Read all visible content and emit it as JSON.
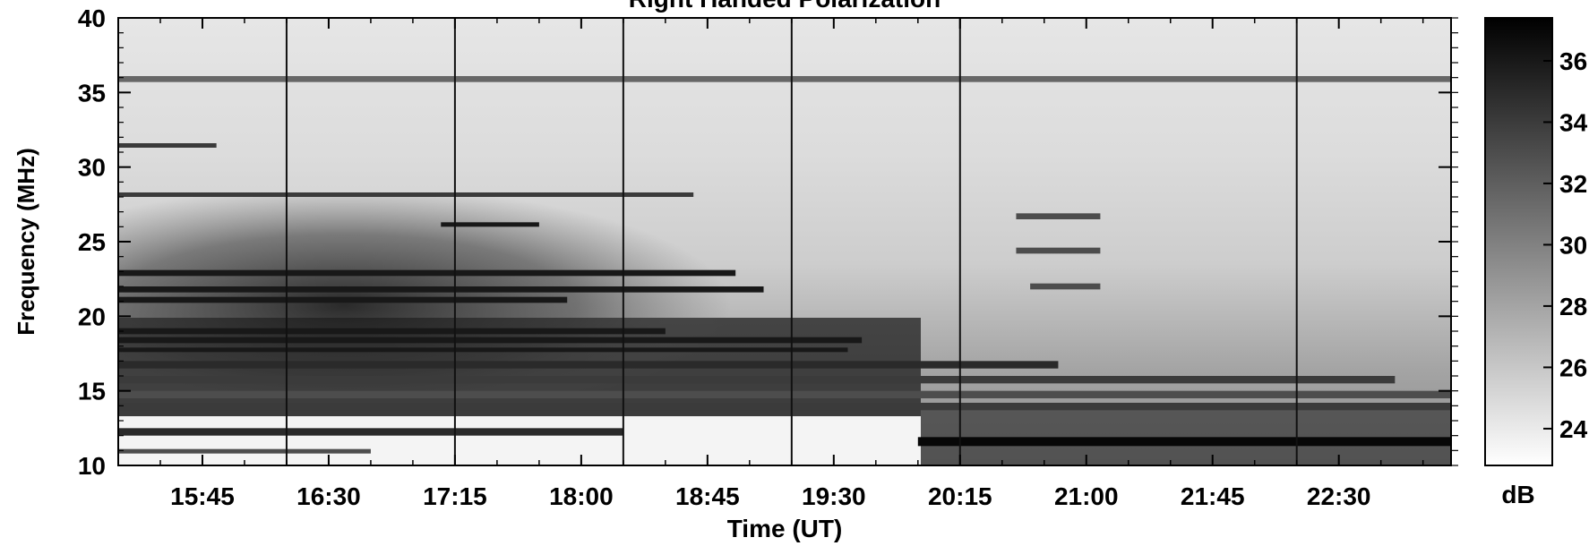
{
  "chart_data": {
    "type": "heatmap",
    "title": "Right Handed Polarization",
    "xlabel": "Time (UT)",
    "ylabel": "Frequency (MHz)",
    "x_ticks": [
      "15:45",
      "16:30",
      "17:15",
      "18:00",
      "18:45",
      "19:30",
      "20:15",
      "21:00",
      "21:45",
      "22:30"
    ],
    "y_ticks": [
      10,
      15,
      20,
      25,
      30,
      35,
      40
    ],
    "xlim": [
      "15:15",
      "23:10"
    ],
    "ylim": [
      10,
      40
    ],
    "colorbar": {
      "label": "dB",
      "ticks": [
        24,
        26,
        28,
        30,
        32,
        34,
        36
      ],
      "range": [
        22.8,
        37.4
      ],
      "colormap": "white-to-black"
    },
    "vertical_markers_ut": [
      "16:15",
      "17:15",
      "18:15",
      "19:15",
      "20:15",
      "22:15"
    ],
    "bands": [
      {
        "f_start": 35.7,
        "f_end": 36.1,
        "t_start": "15:15",
        "t_end": "23:10",
        "db": 31.5
      },
      {
        "f_start": 31.3,
        "f_end": 31.6,
        "t_start": "15:15",
        "t_end": "15:50",
        "db": 34
      },
      {
        "f_start": 28.0,
        "f_end": 28.3,
        "t_start": "15:15",
        "t_end": "18:40",
        "db": 34
      },
      {
        "f_start": 26.0,
        "f_end": 26.3,
        "t_start": "17:10",
        "t_end": "17:45",
        "db": 36
      },
      {
        "f_start": 22.7,
        "f_end": 23.1,
        "t_start": "15:15",
        "t_end": "18:55",
        "db": 36
      },
      {
        "f_start": 21.6,
        "f_end": 22.0,
        "t_start": "15:15",
        "t_end": "19:05",
        "db": 36
      },
      {
        "f_start": 20.9,
        "f_end": 21.3,
        "t_start": "15:15",
        "t_end": "17:55",
        "db": 36
      },
      {
        "f_start": 18.8,
        "f_end": 19.2,
        "t_start": "15:15",
        "t_end": "18:30",
        "db": 36
      },
      {
        "f_start": 18.2,
        "f_end": 18.6,
        "t_start": "15:15",
        "t_end": "19:40",
        "db": 36
      },
      {
        "f_start": 17.6,
        "f_end": 17.9,
        "t_start": "15:15",
        "t_end": "19:35",
        "db": 36
      },
      {
        "f_start": 16.5,
        "f_end": 17.0,
        "t_start": "15:15",
        "t_end": "20:50",
        "db": 35
      },
      {
        "f_start": 15.5,
        "f_end": 16.0,
        "t_start": "15:15",
        "t_end": "22:50",
        "db": 34
      },
      {
        "f_start": 14.5,
        "f_end": 15.0,
        "t_start": "15:15",
        "t_end": "23:10",
        "db": 33
      },
      {
        "f_start": 13.7,
        "f_end": 14.2,
        "t_start": "15:15",
        "t_end": "23:10",
        "db": 34
      },
      {
        "f_start": 12.0,
        "f_end": 12.5,
        "t_start": "15:15",
        "t_end": "18:15",
        "db": 35
      },
      {
        "f_start": 11.3,
        "f_end": 11.9,
        "t_start": "20:00",
        "t_end": "23:10",
        "db": 37
      },
      {
        "f_start": 10.8,
        "f_end": 11.1,
        "t_start": "15:15",
        "t_end": "16:45",
        "db": 33
      },
      {
        "f_start": 26.5,
        "f_end": 26.9,
        "t_start": "20:35",
        "t_end": "21:05",
        "db": 33
      },
      {
        "f_start": 24.2,
        "f_end": 24.6,
        "t_start": "20:35",
        "t_end": "21:05",
        "db": 33
      },
      {
        "f_start": 21.8,
        "f_end": 22.2,
        "t_start": "20:40",
        "t_end": "21:05",
        "db": 33
      }
    ]
  }
}
